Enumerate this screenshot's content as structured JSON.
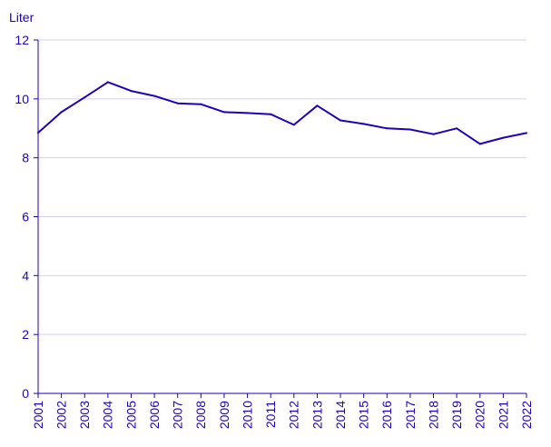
{
  "chart_data": {
    "type": "line",
    "ylabel": "Liter",
    "ylim": [
      0,
      12
    ],
    "yticks": [
      0,
      2,
      4,
      6,
      8,
      10,
      12
    ],
    "grid": true,
    "x": [
      "2001",
      "2002",
      "2003",
      "2004",
      "2005",
      "2006",
      "2007",
      "2008",
      "2009",
      "2010",
      "2011",
      "2012",
      "2013",
      "2014",
      "2015",
      "2016",
      "2017",
      "2018",
      "2019",
      "2020",
      "2021",
      "2022"
    ],
    "series": [
      {
        "values": [
          8.85,
          9.55,
          10.05,
          10.57,
          10.27,
          10.1,
          9.85,
          9.82,
          9.55,
          9.52,
          9.48,
          9.12,
          9.77,
          9.27,
          9.15,
          9.0,
          8.96,
          8.8,
          9.0,
          8.47,
          8.68,
          8.84
        ]
      }
    ],
    "colors": {
      "line": "#1e00be",
      "text": "#1e00be",
      "grid": "#d2d2f0",
      "axis": "#1e00be"
    }
  }
}
